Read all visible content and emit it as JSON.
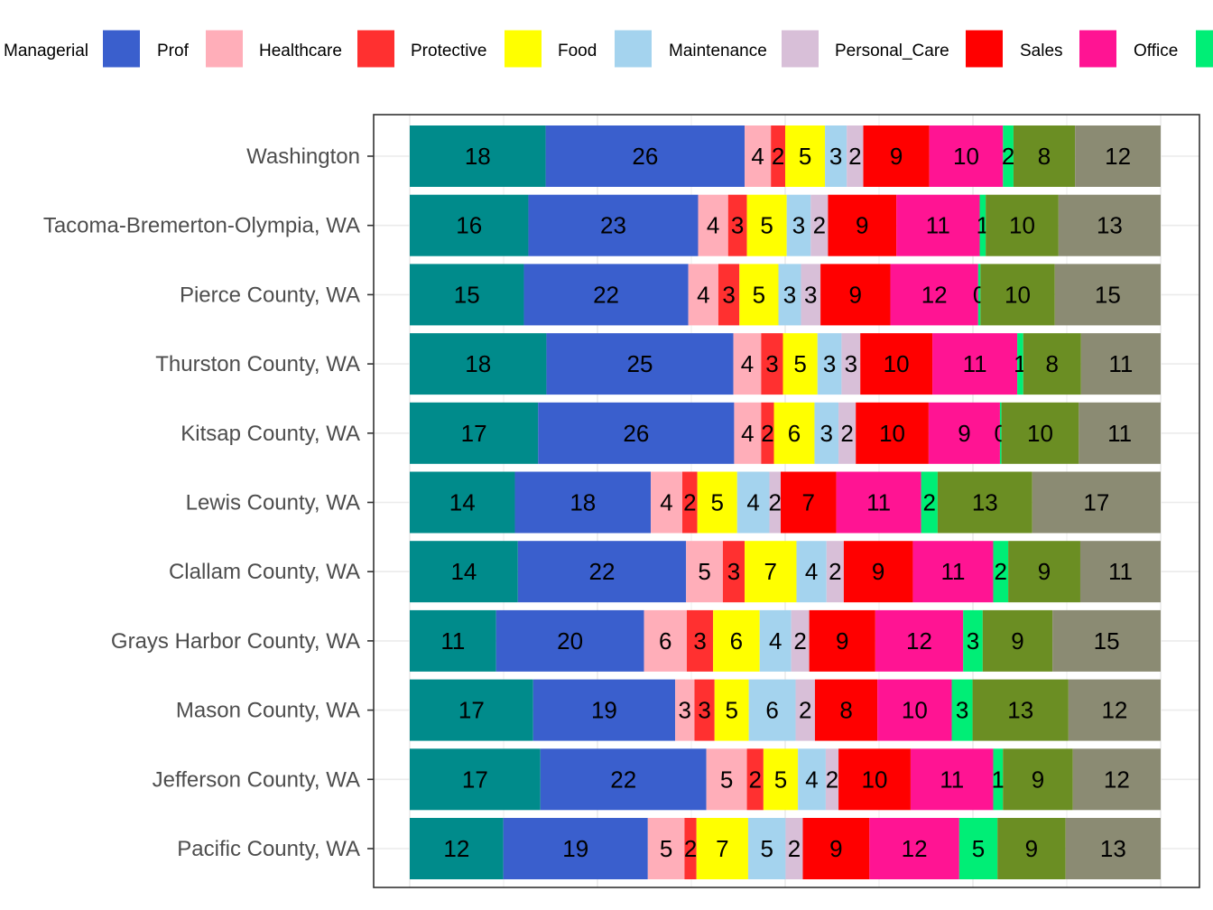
{
  "chart_data": {
    "type": "bar",
    "orientation": "horizontal",
    "stacked": true,
    "normalized": true,
    "grid": true,
    "legend_position": "top",
    "xlabel": "",
    "ylabel": "",
    "title": "",
    "categories": [
      "Washington",
      "Tacoma-Bremerton-Olympia, WA",
      "Pierce County, WA",
      "Thurston County, WA",
      "Kitsap County, WA",
      "Lewis County, WA",
      "Clallam County, WA",
      "Grays Harbor County, WA",
      "Mason County, WA",
      "Jefferson County, WA",
      "Pacific County, WA"
    ],
    "series": [
      {
        "name": "Managerial",
        "color": "#008B8B",
        "values": [
          18,
          16,
          15,
          18,
          17,
          14,
          14,
          11,
          17,
          17,
          12
        ]
      },
      {
        "name": "Prof",
        "color": "#3A5FCD",
        "values": [
          26,
          23,
          22,
          25,
          26,
          18,
          22,
          20,
          19,
          22,
          19
        ]
      },
      {
        "name": "Healthcare",
        "color": "#FFAEB9",
        "values": [
          4,
          4,
          4,
          4,
          4,
          4,
          5,
          6,
          3,
          5,
          5
        ]
      },
      {
        "name": "Protective",
        "color": "#FF3030",
        "values": [
          2,
          3,
          3,
          3,
          2,
          2,
          3,
          3,
          3,
          2,
          2
        ]
      },
      {
        "name": "Food",
        "color": "#FFFF00",
        "values": [
          5,
          5,
          5,
          5,
          6,
          5,
          7,
          6,
          5,
          5,
          7
        ]
      },
      {
        "name": "Maintenance",
        "color": "#A4D3EE",
        "values": [
          3,
          3,
          3,
          3,
          3,
          4,
          4,
          4,
          6,
          4,
          5
        ]
      },
      {
        "name": "Personal_Care",
        "color": "#D8BFD8",
        "values": [
          2,
          2,
          3,
          3,
          2,
          2,
          2,
          2,
          2,
          2,
          2
        ]
      },
      {
        "name": "Sales",
        "color": "#FF0000",
        "values": [
          9,
          9,
          9,
          10,
          10,
          7,
          9,
          9,
          8,
          10,
          9
        ]
      },
      {
        "name": "Office",
        "color": "#FF1493",
        "values": [
          10,
          11,
          12,
          11,
          9,
          11,
          11,
          12,
          10,
          11,
          12
        ]
      },
      {
        "name": "",
        "color": "#00EE76",
        "values": [
          2,
          1,
          0,
          1,
          0,
          2,
          2,
          3,
          3,
          1,
          5
        ]
      },
      {
        "name": "",
        "color": "#6B8E23",
        "values": [
          8,
          10,
          10,
          8,
          10,
          13,
          9,
          9,
          13,
          9,
          9
        ]
      },
      {
        "name": "",
        "color": "#8B8B73",
        "values": [
          12,
          13,
          15,
          11,
          11,
          17,
          11,
          15,
          12,
          12,
          13
        ]
      }
    ],
    "exact_shares": [
      [
        0.181,
        0.265,
        0.035,
        0.019,
        0.053,
        0.029,
        0.022,
        0.088,
        0.098,
        0.014,
        0.082,
        0.114
      ],
      [
        0.158,
        0.226,
        0.04,
        0.025,
        0.053,
        0.032,
        0.023,
        0.091,
        0.111,
        0.008,
        0.097,
        0.136
      ],
      [
        0.152,
        0.219,
        0.04,
        0.028,
        0.052,
        0.03,
        0.026,
        0.093,
        0.117,
        0.003,
        0.099,
        0.141
      ],
      [
        0.182,
        0.249,
        0.037,
        0.029,
        0.046,
        0.032,
        0.025,
        0.096,
        0.113,
        0.008,
        0.077,
        0.106
      ],
      [
        0.171,
        0.261,
        0.036,
        0.017,
        0.054,
        0.032,
        0.023,
        0.097,
        0.095,
        0.002,
        0.103,
        0.109
      ],
      [
        0.14,
        0.181,
        0.042,
        0.02,
        0.053,
        0.043,
        0.015,
        0.074,
        0.113,
        0.022,
        0.126,
        0.171
      ],
      [
        0.144,
        0.224,
        0.049,
        0.029,
        0.069,
        0.04,
        0.023,
        0.092,
        0.107,
        0.02,
        0.096,
        0.107
      ],
      [
        0.115,
        0.197,
        0.057,
        0.035,
        0.062,
        0.042,
        0.024,
        0.088,
        0.117,
        0.026,
        0.093,
        0.144
      ],
      [
        0.166,
        0.191,
        0.026,
        0.027,
        0.046,
        0.063,
        0.026,
        0.084,
        0.1,
        0.028,
        0.129,
        0.124
      ],
      [
        0.174,
        0.221,
        0.054,
        0.022,
        0.046,
        0.037,
        0.017,
        0.096,
        0.11,
        0.013,
        0.093,
        0.117
      ],
      [
        0.125,
        0.193,
        0.049,
        0.016,
        0.069,
        0.05,
        0.023,
        0.089,
        0.12,
        0.051,
        0.091,
        0.127
      ]
    ],
    "xlim": [
      0,
      1
    ]
  }
}
